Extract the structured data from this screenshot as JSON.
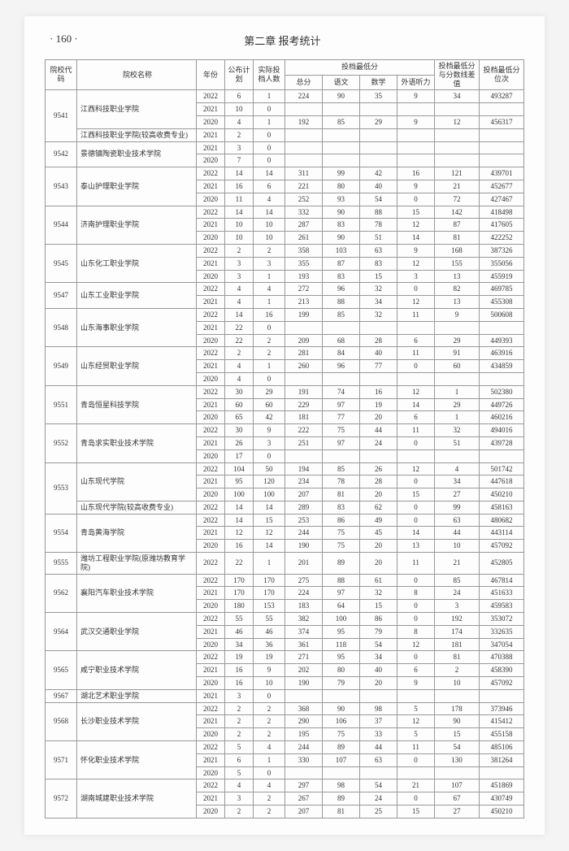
{
  "header": {
    "page_number": "· 160 ·",
    "chapter": "第二章  报考统计"
  },
  "columns": {
    "code": "院校代码",
    "name": "院校名称",
    "year": "年份",
    "plan": "公布计划",
    "actual": "实际投档人数",
    "score_group": "投档最低分",
    "total": "总分",
    "chinese": "语文",
    "math": "数学",
    "listening": "外语听力",
    "diff": "投档最低分与分数线差值",
    "rank": "投档最低分位次"
  },
  "schools": [
    {
      "code": "9541",
      "names": [
        "江西科技职业学院",
        "江西科技职业学院(较高收费专业)"
      ],
      "nameSpans": [
        3,
        1
      ],
      "rows": [
        {
          "year": "2022",
          "plan": "6",
          "actual": "1",
          "total": "224",
          "chinese": "90",
          "math": "35",
          "listening": "9",
          "diff": "34",
          "rank": "493287"
        },
        {
          "year": "2021",
          "plan": "10",
          "actual": "0",
          "total": "",
          "chinese": "",
          "math": "",
          "listening": "",
          "diff": "",
          "rank": ""
        },
        {
          "year": "2020",
          "plan": "4",
          "actual": "1",
          "total": "192",
          "chinese": "85",
          "math": "29",
          "listening": "9",
          "diff": "12",
          "rank": "456317"
        },
        {
          "year": "2021",
          "plan": "2",
          "actual": "0",
          "total": "",
          "chinese": "",
          "math": "",
          "listening": "",
          "diff": "",
          "rank": ""
        }
      ]
    },
    {
      "code": "9542",
      "names": [
        "景德镇陶瓷职业技术学院"
      ],
      "nameSpans": [
        2
      ],
      "rows": [
        {
          "year": "2021",
          "plan": "3",
          "actual": "0",
          "total": "",
          "chinese": "",
          "math": "",
          "listening": "",
          "diff": "",
          "rank": ""
        },
        {
          "year": "2020",
          "plan": "7",
          "actual": "0",
          "total": "",
          "chinese": "",
          "math": "",
          "listening": "",
          "diff": "",
          "rank": ""
        }
      ]
    },
    {
      "code": "9543",
      "names": [
        "泰山护理职业学院"
      ],
      "nameSpans": [
        3
      ],
      "rows": [
        {
          "year": "2022",
          "plan": "14",
          "actual": "14",
          "total": "311",
          "chinese": "99",
          "math": "42",
          "listening": "16",
          "diff": "121",
          "rank": "439701"
        },
        {
          "year": "2021",
          "plan": "16",
          "actual": "6",
          "total": "221",
          "chinese": "80",
          "math": "40",
          "listening": "9",
          "diff": "21",
          "rank": "452677"
        },
        {
          "year": "2020",
          "plan": "11",
          "actual": "4",
          "total": "252",
          "chinese": "93",
          "math": "54",
          "listening": "0",
          "diff": "72",
          "rank": "427467"
        }
      ]
    },
    {
      "code": "9544",
      "names": [
        "济南护理职业学院"
      ],
      "nameSpans": [
        3
      ],
      "rows": [
        {
          "year": "2022",
          "plan": "14",
          "actual": "14",
          "total": "332",
          "chinese": "90",
          "math": "88",
          "listening": "15",
          "diff": "142",
          "rank": "418498"
        },
        {
          "year": "2021",
          "plan": "10",
          "actual": "10",
          "total": "287",
          "chinese": "83",
          "math": "78",
          "listening": "12",
          "diff": "87",
          "rank": "417605"
        },
        {
          "year": "2020",
          "plan": "10",
          "actual": "10",
          "total": "261",
          "chinese": "90",
          "math": "51",
          "listening": "14",
          "diff": "81",
          "rank": "422252"
        }
      ]
    },
    {
      "code": "9545",
      "names": [
        "山东化工职业学院"
      ],
      "nameSpans": [
        3
      ],
      "rows": [
        {
          "year": "2022",
          "plan": "2",
          "actual": "2",
          "total": "358",
          "chinese": "103",
          "math": "63",
          "listening": "9",
          "diff": "168",
          "rank": "387326"
        },
        {
          "year": "2021",
          "plan": "3",
          "actual": "3",
          "total": "355",
          "chinese": "87",
          "math": "83",
          "listening": "12",
          "diff": "155",
          "rank": "355056"
        },
        {
          "year": "2020",
          "plan": "3",
          "actual": "1",
          "total": "193",
          "chinese": "83",
          "math": "15",
          "listening": "3",
          "diff": "13",
          "rank": "455919"
        }
      ]
    },
    {
      "code": "9547",
      "names": [
        "山东工业职业学院"
      ],
      "nameSpans": [
        2
      ],
      "rows": [
        {
          "year": "2022",
          "plan": "4",
          "actual": "4",
          "total": "272",
          "chinese": "96",
          "math": "32",
          "listening": "0",
          "diff": "82",
          "rank": "469785"
        },
        {
          "year": "2021",
          "plan": "4",
          "actual": "1",
          "total": "213",
          "chinese": "88",
          "math": "34",
          "listening": "12",
          "diff": "13",
          "rank": "455308"
        }
      ]
    },
    {
      "code": "9548",
      "names": [
        "山东海事职业学院"
      ],
      "nameSpans": [
        3
      ],
      "rows": [
        {
          "year": "2022",
          "plan": "14",
          "actual": "16",
          "total": "199",
          "chinese": "85",
          "math": "32",
          "listening": "11",
          "diff": "9",
          "rank": "500608"
        },
        {
          "year": "2021",
          "plan": "22",
          "actual": "0",
          "total": "",
          "chinese": "",
          "math": "",
          "listening": "",
          "diff": "",
          "rank": ""
        },
        {
          "year": "2020",
          "plan": "22",
          "actual": "2",
          "total": "209",
          "chinese": "68",
          "math": "28",
          "listening": "6",
          "diff": "29",
          "rank": "449393"
        }
      ]
    },
    {
      "code": "9549",
      "names": [
        "山东经贸职业学院"
      ],
      "nameSpans": [
        3
      ],
      "rows": [
        {
          "year": "2022",
          "plan": "2",
          "actual": "2",
          "total": "281",
          "chinese": "84",
          "math": "40",
          "listening": "11",
          "diff": "91",
          "rank": "463916"
        },
        {
          "year": "2021",
          "plan": "4",
          "actual": "1",
          "total": "260",
          "chinese": "96",
          "math": "77",
          "listening": "0",
          "diff": "60",
          "rank": "434859"
        },
        {
          "year": "2020",
          "plan": "4",
          "actual": "0",
          "total": "",
          "chinese": "",
          "math": "",
          "listening": "",
          "diff": "",
          "rank": ""
        }
      ]
    },
    {
      "code": "9551",
      "names": [
        "青岛恒星科技学院"
      ],
      "nameSpans": [
        3
      ],
      "rows": [
        {
          "year": "2022",
          "plan": "30",
          "actual": "29",
          "total": "191",
          "chinese": "74",
          "math": "16",
          "listening": "12",
          "diff": "1",
          "rank": "502380"
        },
        {
          "year": "2021",
          "plan": "60",
          "actual": "60",
          "total": "229",
          "chinese": "97",
          "math": "19",
          "listening": "14",
          "diff": "29",
          "rank": "449726"
        },
        {
          "year": "2020",
          "plan": "65",
          "actual": "42",
          "total": "181",
          "chinese": "77",
          "math": "20",
          "listening": "6",
          "diff": "1",
          "rank": "460216"
        }
      ]
    },
    {
      "code": "9552",
      "names": [
        "青岛求实职业技术学院"
      ],
      "nameSpans": [
        3
      ],
      "rows": [
        {
          "year": "2022",
          "plan": "30",
          "actual": "9",
          "total": "222",
          "chinese": "75",
          "math": "44",
          "listening": "11",
          "diff": "32",
          "rank": "494016"
        },
        {
          "year": "2021",
          "plan": "26",
          "actual": "3",
          "total": "251",
          "chinese": "97",
          "math": "24",
          "listening": "0",
          "diff": "51",
          "rank": "439728"
        },
        {
          "year": "2020",
          "plan": "17",
          "actual": "0",
          "total": "",
          "chinese": "",
          "math": "",
          "listening": "",
          "diff": "",
          "rank": ""
        }
      ]
    },
    {
      "code": "9553",
      "names": [
        "山东现代学院",
        "山东现代学院(较高收费专业)"
      ],
      "nameSpans": [
        3,
        1
      ],
      "rows": [
        {
          "year": "2022",
          "plan": "104",
          "actual": "50",
          "total": "194",
          "chinese": "85",
          "math": "26",
          "listening": "12",
          "diff": "4",
          "rank": "501742"
        },
        {
          "year": "2021",
          "plan": "95",
          "actual": "120",
          "total": "234",
          "chinese": "78",
          "math": "28",
          "listening": "0",
          "diff": "34",
          "rank": "447618"
        },
        {
          "year": "2020",
          "plan": "100",
          "actual": "100",
          "total": "207",
          "chinese": "81",
          "math": "20",
          "listening": "15",
          "diff": "27",
          "rank": "450210"
        },
        {
          "year": "2022",
          "plan": "14",
          "actual": "14",
          "total": "289",
          "chinese": "83",
          "math": "62",
          "listening": "0",
          "diff": "99",
          "rank": "458163"
        }
      ]
    },
    {
      "code": "9554",
      "names": [
        "青岛黄海学院"
      ],
      "nameSpans": [
        3
      ],
      "rows": [
        {
          "year": "2022",
          "plan": "14",
          "actual": "15",
          "total": "253",
          "chinese": "86",
          "math": "49",
          "listening": "0",
          "diff": "63",
          "rank": "480682"
        },
        {
          "year": "2021",
          "plan": "12",
          "actual": "12",
          "total": "244",
          "chinese": "75",
          "math": "45",
          "listening": "14",
          "diff": "44",
          "rank": "443114"
        },
        {
          "year": "2020",
          "plan": "16",
          "actual": "14",
          "total": "190",
          "chinese": "75",
          "math": "20",
          "listening": "13",
          "diff": "10",
          "rank": "457092"
        }
      ]
    },
    {
      "code": "9555",
      "names": [
        "潍坊工程职业学院(原潍坊教育学院)"
      ],
      "nameSpans": [
        1
      ],
      "rows": [
        {
          "year": "2022",
          "plan": "22",
          "actual": "1",
          "total": "201",
          "chinese": "89",
          "math": "20",
          "listening": "11",
          "diff": "21",
          "rank": "452805"
        }
      ]
    },
    {
      "code": "9562",
      "names": [
        "襄阳汽车职业技术学院"
      ],
      "nameSpans": [
        3
      ],
      "rows": [
        {
          "year": "2022",
          "plan": "170",
          "actual": "170",
          "total": "275",
          "chinese": "88",
          "math": "61",
          "listening": "0",
          "diff": "85",
          "rank": "467814"
        },
        {
          "year": "2021",
          "plan": "170",
          "actual": "170",
          "total": "224",
          "chinese": "97",
          "math": "32",
          "listening": "8",
          "diff": "24",
          "rank": "451633"
        },
        {
          "year": "2020",
          "plan": "180",
          "actual": "153",
          "total": "183",
          "chinese": "64",
          "math": "15",
          "listening": "0",
          "diff": "3",
          "rank": "459583"
        }
      ]
    },
    {
      "code": "9564",
      "names": [
        "武汉交通职业学院"
      ],
      "nameSpans": [
        3
      ],
      "rows": [
        {
          "year": "2022",
          "plan": "55",
          "actual": "55",
          "total": "382",
          "chinese": "100",
          "math": "86",
          "listening": "0",
          "diff": "192",
          "rank": "353072"
        },
        {
          "year": "2021",
          "plan": "46",
          "actual": "46",
          "total": "374",
          "chinese": "95",
          "math": "79",
          "listening": "8",
          "diff": "174",
          "rank": "332635"
        },
        {
          "year": "2020",
          "plan": "34",
          "actual": "36",
          "total": "361",
          "chinese": "118",
          "math": "54",
          "listening": "12",
          "diff": "181",
          "rank": "347054"
        }
      ]
    },
    {
      "code": "9565",
      "names": [
        "咸宁职业技术学院"
      ],
      "nameSpans": [
        3
      ],
      "rows": [
        {
          "year": "2022",
          "plan": "19",
          "actual": "19",
          "total": "271",
          "chinese": "95",
          "math": "34",
          "listening": "0",
          "diff": "81",
          "rank": "470388"
        },
        {
          "year": "2021",
          "plan": "16",
          "actual": "9",
          "total": "202",
          "chinese": "80",
          "math": "40",
          "listening": "6",
          "diff": "2",
          "rank": "458390"
        },
        {
          "year": "2020",
          "plan": "16",
          "actual": "10",
          "total": "190",
          "chinese": "79",
          "math": "20",
          "listening": "9",
          "diff": "10",
          "rank": "457092"
        }
      ]
    },
    {
      "code": "9567",
      "names": [
        "湖北艺术职业学院"
      ],
      "nameSpans": [
        1
      ],
      "rows": [
        {
          "year": "2021",
          "plan": "3",
          "actual": "0",
          "total": "",
          "chinese": "",
          "math": "",
          "listening": "",
          "diff": "",
          "rank": ""
        }
      ]
    },
    {
      "code": "9568",
      "names": [
        "长沙职业技术学院"
      ],
      "nameSpans": [
        3
      ],
      "rows": [
        {
          "year": "2022",
          "plan": "2",
          "actual": "2",
          "total": "368",
          "chinese": "90",
          "math": "98",
          "listening": "5",
          "diff": "178",
          "rank": "373946"
        },
        {
          "year": "2021",
          "plan": "2",
          "actual": "2",
          "total": "290",
          "chinese": "106",
          "math": "37",
          "listening": "12",
          "diff": "90",
          "rank": "415412"
        },
        {
          "year": "2020",
          "plan": "2",
          "actual": "2",
          "total": "195",
          "chinese": "75",
          "math": "33",
          "listening": "5",
          "diff": "15",
          "rank": "455158"
        }
      ]
    },
    {
      "code": "9571",
      "names": [
        "怀化职业技术学院"
      ],
      "nameSpans": [
        3
      ],
      "rows": [
        {
          "year": "2022",
          "plan": "5",
          "actual": "4",
          "total": "244",
          "chinese": "89",
          "math": "44",
          "listening": "11",
          "diff": "54",
          "rank": "485106"
        },
        {
          "year": "2021",
          "plan": "6",
          "actual": "1",
          "total": "330",
          "chinese": "107",
          "math": "63",
          "listening": "0",
          "diff": "130",
          "rank": "381264"
        },
        {
          "year": "2020",
          "plan": "5",
          "actual": "0",
          "total": "",
          "chinese": "",
          "math": "",
          "listening": "",
          "diff": "",
          "rank": ""
        }
      ]
    },
    {
      "code": "9572",
      "names": [
        "湖南城建职业技术学院"
      ],
      "nameSpans": [
        3
      ],
      "rows": [
        {
          "year": "2022",
          "plan": "4",
          "actual": "4",
          "total": "297",
          "chinese": "98",
          "math": "54",
          "listening": "21",
          "diff": "107",
          "rank": "451869"
        },
        {
          "year": "2021",
          "plan": "3",
          "actual": "2",
          "total": "267",
          "chinese": "89",
          "math": "24",
          "listening": "0",
          "diff": "67",
          "rank": "430749"
        },
        {
          "year": "2020",
          "plan": "2",
          "actual": "2",
          "total": "207",
          "chinese": "81",
          "math": "25",
          "listening": "15",
          "diff": "27",
          "rank": "450210"
        }
      ]
    }
  ]
}
